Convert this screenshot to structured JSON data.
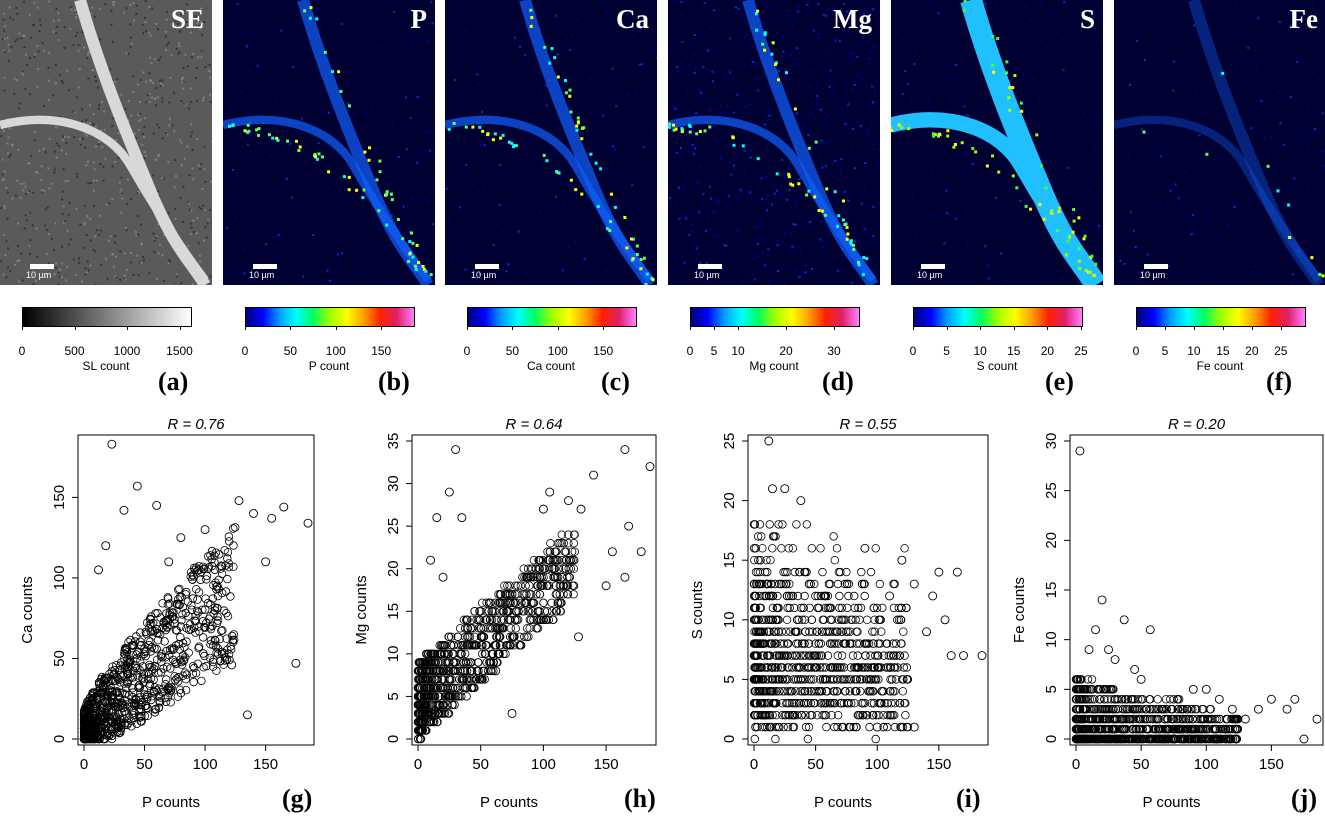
{
  "maps": [
    {
      "id": "a",
      "label": "SE",
      "scale": "10 µm",
      "colorbar_title": "SL count",
      "ticks": [
        0,
        500,
        1000,
        1500
      ],
      "max": 1600,
      "cmap": "gray",
      "letter": "(a)"
    },
    {
      "id": "b",
      "label": "P",
      "scale": "10 µm",
      "colorbar_title": "P count",
      "ticks": [
        0,
        50,
        100,
        150
      ],
      "max": 185,
      "cmap": "jet",
      "letter": "(b)"
    },
    {
      "id": "c",
      "label": "Ca",
      "scale": "10 µm",
      "colorbar_title": "Ca count",
      "ticks": [
        0,
        50,
        100,
        150
      ],
      "max": 185,
      "cmap": "jet",
      "letter": "(c)"
    },
    {
      "id": "d",
      "label": "Mg",
      "scale": "10 µm",
      "colorbar_title": "Mg count",
      "ticks": [
        0,
        5,
        10,
        20,
        30
      ],
      "max": 35,
      "cmap": "jet",
      "letter": "(d)"
    },
    {
      "id": "e",
      "label": "S",
      "scale": "10 µm",
      "colorbar_title": "S count",
      "ticks": [
        0,
        5,
        10,
        15,
        20,
        25
      ],
      "max": 25,
      "cmap": "jet",
      "letter": "(e)"
    },
    {
      "id": "f",
      "label": "Fe",
      "scale": "10 µm",
      "colorbar_title": "Fe count",
      "ticks": [
        0,
        5,
        10,
        15,
        20,
        25
      ],
      "max": 29,
      "cmap": "jet",
      "letter": "(f)"
    }
  ],
  "chart_data": [
    {
      "type": "scatter",
      "letter": "(g)",
      "title": "R = 0.76",
      "xlabel": "P counts",
      "ylabel": "Ca counts",
      "xlim": [
        0,
        185
      ],
      "ylim": [
        0,
        185
      ],
      "xticks": [
        0,
        50,
        100,
        150
      ],
      "yticks": [
        0,
        50,
        100,
        150
      ],
      "points": [
        [
          23,
          183
        ],
        [
          44,
          157
        ],
        [
          175,
          47
        ],
        [
          185,
          134
        ],
        [
          165,
          144
        ],
        [
          128,
          148
        ],
        [
          155,
          137
        ],
        [
          140,
          140
        ],
        [
          135,
          15
        ],
        [
          122,
          46
        ],
        [
          100,
          130
        ],
        [
          95,
          105
        ],
        [
          80,
          125
        ],
        [
          60,
          145
        ],
        [
          33,
          142
        ],
        [
          18,
          120
        ],
        [
          12,
          105
        ],
        [
          150,
          110
        ],
        [
          110,
          95
        ],
        [
          70,
          110
        ]
      ]
    },
    {
      "type": "scatter",
      "letter": "(h)",
      "title": "R = 0.64",
      "xlabel": "P counts",
      "ylabel": "Mg counts",
      "xlim": [
        0,
        185
      ],
      "ylim": [
        0,
        35
      ],
      "xticks": [
        0,
        50,
        100,
        150
      ],
      "yticks": [
        0,
        5,
        10,
        15,
        20,
        25,
        30,
        35
      ],
      "points": [
        [
          30,
          34
        ],
        [
          165,
          34
        ],
        [
          185,
          32
        ],
        [
          140,
          31
        ],
        [
          25,
          29
        ],
        [
          105,
          29
        ],
        [
          15,
          26
        ],
        [
          35,
          26
        ],
        [
          168,
          25
        ],
        [
          155,
          22
        ],
        [
          178,
          22
        ],
        [
          100,
          27
        ],
        [
          120,
          28
        ],
        [
          130,
          27
        ],
        [
          10,
          21
        ],
        [
          20,
          19
        ],
        [
          150,
          18
        ],
        [
          165,
          19
        ],
        [
          128,
          12
        ],
        [
          75,
          3
        ],
        [
          62,
          8
        ],
        [
          95,
          14
        ],
        [
          110,
          18
        ]
      ]
    },
    {
      "type": "scatter",
      "letter": "(i)",
      "title": "R = 0.55",
      "xlabel": "P counts",
      "ylabel": "S counts",
      "xlim": [
        0,
        185
      ],
      "ylim": [
        0,
        25
      ],
      "xticks": [
        0,
        50,
        100,
        150
      ],
      "yticks": [
        0,
        5,
        10,
        15,
        20,
        25
      ],
      "points": [
        [
          12,
          25
        ],
        [
          15,
          21
        ],
        [
          25,
          21
        ],
        [
          38,
          20
        ],
        [
          165,
          14
        ],
        [
          150,
          14
        ],
        [
          185,
          7
        ],
        [
          170,
          7
        ],
        [
          140,
          9
        ],
        [
          145,
          12
        ],
        [
          155,
          10
        ],
        [
          130,
          1
        ],
        [
          100,
          1
        ],
        [
          160,
          7
        ],
        [
          130,
          13
        ],
        [
          120,
          15
        ],
        [
          90,
          16
        ],
        [
          110,
          12
        ]
      ]
    },
    {
      "type": "scatter",
      "letter": "(j)",
      "title": "R = 0.20",
      "xlabel": "P counts",
      "ylabel": "Fe counts",
      "xlim": [
        0,
        185
      ],
      "ylim": [
        0,
        30
      ],
      "xticks": [
        0,
        50,
        100,
        150
      ],
      "yticks": [
        0,
        5,
        10,
        15,
        20,
        25,
        30
      ],
      "points": [
        [
          3,
          29
        ],
        [
          20,
          14
        ],
        [
          37,
          12
        ],
        [
          57,
          11
        ],
        [
          15,
          11
        ],
        [
          10,
          9
        ],
        [
          25,
          9
        ],
        [
          30,
          8
        ],
        [
          45,
          7
        ],
        [
          50,
          6
        ],
        [
          185,
          2
        ],
        [
          175,
          0
        ],
        [
          168,
          4
        ],
        [
          162,
          3
        ],
        [
          150,
          4
        ],
        [
          140,
          3
        ],
        [
          130,
          2
        ],
        [
          120,
          3
        ],
        [
          110,
          4
        ],
        [
          100,
          5
        ],
        [
          90,
          5
        ]
      ]
    }
  ]
}
